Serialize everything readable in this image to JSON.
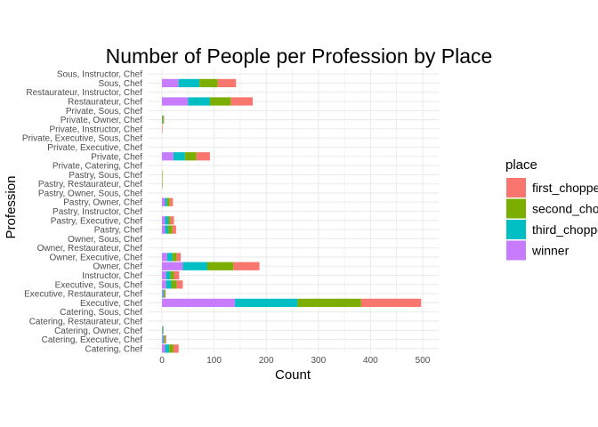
{
  "chart_data": {
    "type": "bar",
    "orientation": "horizontal",
    "stacked": true,
    "title": "Number of People per Profession by Place",
    "xlabel": "Count",
    "ylabel": "Profession",
    "xlim": [
      0,
      520
    ],
    "x_ticks": [
      0,
      100,
      200,
      300,
      400,
      500
    ],
    "grid": true,
    "legend_position": "right",
    "legend_title": "place",
    "categories": [
      "Sous, Instructor, Chef",
      "Sous, Chef",
      "Restaurateur, Instructor, Chef",
      "Restaurateur, Chef",
      "Private, Sous, Chef",
      "Private, Owner, Chef",
      "Private, Instructor, Chef",
      "Private, Executive, Sous, Chef",
      "Private, Executive, Chef",
      "Private, Chef",
      "Private, Catering, Chef",
      "Pastry, Sous, Chef",
      "Pastry, Restaurateur, Chef",
      "Pastry, Owner, Sous, Chef",
      "Pastry, Owner, Chef",
      "Pastry, Instructor, Chef",
      "Pastry, Executive, Chef",
      "Pastry, Chef",
      "Owner, Sous, Chef",
      "Owner, Restaurateur, Chef",
      "Owner, Executive, Chef",
      "Owner, Chef",
      "Instructor, Chef",
      "Executive, Sous, Chef",
      "Executive, Restaurateur, Chef",
      "Executive, Chef",
      "Catering, Sous, Chef",
      "Catering, Restaurateur, Chef",
      "Catering, Owner, Chef",
      "Catering, Executive, Chef",
      "Catering, Chef"
    ],
    "series": [
      {
        "name": "winner",
        "color": "#C77CFF",
        "values": [
          0,
          32,
          0,
          50,
          0,
          0,
          0,
          0,
          0,
          22,
          0,
          0,
          0,
          0,
          6,
          0,
          6,
          6,
          0,
          0,
          10,
          40,
          8,
          8,
          2,
          140,
          0,
          0,
          1,
          2,
          6
        ]
      },
      {
        "name": "third_chopped",
        "color": "#00BFC4",
        "values": [
          0,
          40,
          0,
          42,
          0,
          1,
          0,
          0,
          0,
          22,
          0,
          0,
          0,
          0,
          4,
          0,
          6,
          6,
          0,
          0,
          10,
          47,
          8,
          10,
          2,
          120,
          0,
          0,
          1,
          2,
          8
        ]
      },
      {
        "name": "second_chopped",
        "color": "#7CAE00",
        "values": [
          0,
          35,
          0,
          40,
          0,
          2,
          0,
          0,
          0,
          22,
          0,
          1,
          1,
          0,
          5,
          0,
          4,
          8,
          0,
          0,
          8,
          50,
          7,
          10,
          2,
          122,
          0,
          0,
          1,
          2,
          8
        ]
      },
      {
        "name": "first_chopped",
        "color": "#F8766D",
        "values": [
          0,
          35,
          0,
          42,
          0,
          1,
          1,
          0,
          0,
          26,
          0,
          0,
          0,
          0,
          6,
          0,
          7,
          7,
          0,
          0,
          8,
          50,
          10,
          12,
          1,
          115,
          0,
          0,
          0,
          2,
          10
        ]
      }
    ],
    "legend_order": [
      "first_chopped",
      "second_chopped",
      "third_chopped",
      "winner"
    ]
  }
}
